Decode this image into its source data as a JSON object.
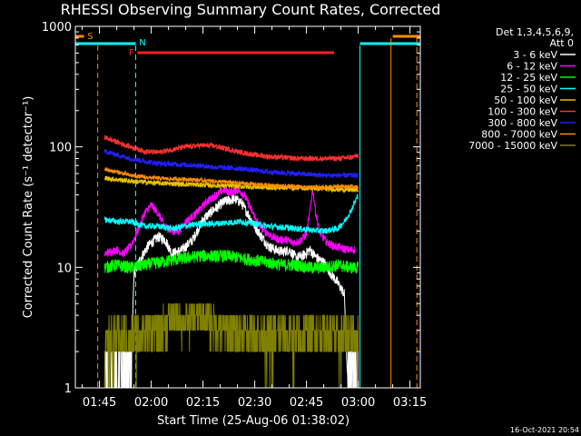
{
  "chart_data": {
    "type": "line",
    "title": "RHESSI Observing Summary Count Rates, Corrected",
    "xlabel": "Start Time (25-Aug-06 01:38:02)",
    "ylabel": "Corrected Count Rate (s⁻¹ detector⁻¹)",
    "x_unit": "minutes since 01:38:02",
    "xlim": [
      0,
      100
    ],
    "ylim": [
      1,
      1000
    ],
    "yscale": "log",
    "x_ticks": [
      {
        "label": "01:45",
        "minute": 7
      },
      {
        "label": "02:00",
        "minute": 22
      },
      {
        "label": "02:15",
        "minute": 37
      },
      {
        "label": "02:30",
        "minute": 52
      },
      {
        "label": "02:45",
        "minute": 67
      },
      {
        "label": "03:00",
        "minute": 82
      },
      {
        "label": "03:15",
        "minute": 97
      }
    ],
    "y_ticks": [
      {
        "label": "1",
        "value": 1
      },
      {
        "label": "10",
        "value": 10
      },
      {
        "label": "100",
        "value": 100
      },
      {
        "label": "1000",
        "value": 1000
      }
    ],
    "legend_title": [
      "Det 1,3,4,5,6,9,",
      "Att 0"
    ],
    "legend_position": "right",
    "series": [
      {
        "name": "3 - 6 keV",
        "color": "#ffffff",
        "points": [
          [
            8.5,
            1
          ],
          [
            14,
            1.2
          ],
          [
            16.3,
            2
          ],
          [
            17,
            9
          ],
          [
            19,
            12
          ],
          [
            21,
            15
          ],
          [
            24,
            18
          ],
          [
            26,
            17
          ],
          [
            28,
            13
          ],
          [
            31,
            14
          ],
          [
            34,
            17
          ],
          [
            37,
            25
          ],
          [
            40,
            30
          ],
          [
            43,
            35
          ],
          [
            46,
            37
          ],
          [
            48,
            35
          ],
          [
            50,
            28
          ],
          [
            52,
            22
          ],
          [
            54,
            18
          ],
          [
            56,
            15
          ],
          [
            58,
            14
          ],
          [
            60,
            13.5
          ],
          [
            62,
            14
          ],
          [
            64,
            12
          ],
          [
            66,
            12.5
          ],
          [
            68,
            14
          ],
          [
            70,
            12
          ],
          [
            72,
            11
          ],
          [
            74,
            9
          ],
          [
            76,
            7.5
          ],
          [
            78,
            6
          ],
          [
            79,
            1
          ],
          [
            80,
            1.5
          ],
          [
            82,
            1
          ]
        ]
      },
      {
        "name": "6 - 12 keV",
        "color": "#ff00ff",
        "points": [
          [
            8.5,
            13
          ],
          [
            12,
            14
          ],
          [
            14,
            13
          ],
          [
            16,
            15
          ],
          [
            18,
            20
          ],
          [
            20,
            28
          ],
          [
            22,
            33
          ],
          [
            24,
            28
          ],
          [
            26,
            22
          ],
          [
            28,
            20
          ],
          [
            30,
            20
          ],
          [
            32,
            24
          ],
          [
            35,
            28
          ],
          [
            38,
            35
          ],
          [
            41,
            40
          ],
          [
            43,
            44
          ],
          [
            45,
            42
          ],
          [
            47,
            44
          ],
          [
            49,
            40
          ],
          [
            51,
            30
          ],
          [
            53,
            23
          ],
          [
            55,
            20
          ],
          [
            57,
            18
          ],
          [
            59,
            17
          ],
          [
            61,
            17
          ],
          [
            63,
            16
          ],
          [
            65,
            16.5
          ],
          [
            67,
            19
          ],
          [
            68,
            29
          ],
          [
            68.8,
            45
          ],
          [
            69.6,
            29
          ],
          [
            71,
            19
          ],
          [
            73,
            16
          ],
          [
            75,
            15
          ],
          [
            77,
            14.5
          ],
          [
            79,
            14
          ],
          [
            81,
            14
          ]
        ]
      },
      {
        "name": "12 - 25 keV",
        "color": "#00ff00",
        "points": [
          [
            8.5,
            10
          ],
          [
            12,
            10.5
          ],
          [
            16,
            10
          ],
          [
            20,
            10.5
          ],
          [
            24,
            11
          ],
          [
            28,
            11.5
          ],
          [
            32,
            12
          ],
          [
            36,
            12.5
          ],
          [
            40,
            12.5
          ],
          [
            44,
            12.5
          ],
          [
            48,
            12
          ],
          [
            52,
            11.5
          ],
          [
            56,
            11
          ],
          [
            60,
            10.5
          ],
          [
            64,
            10.5
          ],
          [
            68,
            10
          ],
          [
            72,
            10
          ],
          [
            76,
            10.5
          ],
          [
            80,
            10
          ],
          [
            82,
            10
          ]
        ]
      },
      {
        "name": "25 - 50 keV",
        "color": "#00ffff",
        "points": [
          [
            8.5,
            25
          ],
          [
            12,
            24
          ],
          [
            16,
            24
          ],
          [
            20,
            22
          ],
          [
            24,
            22
          ],
          [
            28,
            21
          ],
          [
            32,
            22
          ],
          [
            36,
            23
          ],
          [
            40,
            23
          ],
          [
            44,
            23.5
          ],
          [
            48,
            24
          ],
          [
            52,
            23
          ],
          [
            56,
            22
          ],
          [
            60,
            21.5
          ],
          [
            64,
            21
          ],
          [
            68,
            20.5
          ],
          [
            72,
            20
          ],
          [
            76,
            21
          ],
          [
            78,
            24
          ],
          [
            80,
            30
          ],
          [
            82,
            40
          ]
        ]
      },
      {
        "name": "50 - 100 keV",
        "color": "#e8c000",
        "points": [
          [
            8.5,
            55
          ],
          [
            16,
            52
          ],
          [
            24,
            50
          ],
          [
            32,
            49
          ],
          [
            40,
            48
          ],
          [
            48,
            47
          ],
          [
            56,
            46
          ],
          [
            64,
            46
          ],
          [
            72,
            45
          ],
          [
            80,
            44
          ],
          [
            82,
            44
          ]
        ]
      },
      {
        "name": "100 - 300 keV",
        "color": "#ff3030",
        "points": [
          [
            8.5,
            120
          ],
          [
            12,
            110
          ],
          [
            16,
            100
          ],
          [
            20,
            92
          ],
          [
            24,
            90
          ],
          [
            28,
            95
          ],
          [
            32,
            100
          ],
          [
            36,
            103
          ],
          [
            40,
            102
          ],
          [
            44,
            96
          ],
          [
            48,
            90
          ],
          [
            52,
            86
          ],
          [
            56,
            83
          ],
          [
            60,
            82
          ],
          [
            64,
            80
          ],
          [
            68,
            80
          ],
          [
            72,
            80
          ],
          [
            76,
            80
          ],
          [
            80,
            82
          ],
          [
            82,
            85
          ]
        ]
      },
      {
        "name": "300 - 800 keV",
        "color": "#2020ff",
        "points": [
          [
            8.5,
            92
          ],
          [
            12,
            86
          ],
          [
            16,
            80
          ],
          [
            20,
            76
          ],
          [
            24,
            73
          ],
          [
            28,
            72
          ],
          [
            32,
            71
          ],
          [
            36,
            70
          ],
          [
            40,
            68
          ],
          [
            44,
            67
          ],
          [
            48,
            66
          ],
          [
            52,
            64
          ],
          [
            56,
            62
          ],
          [
            60,
            61
          ],
          [
            64,
            60
          ],
          [
            68,
            59
          ],
          [
            72,
            58
          ],
          [
            76,
            58
          ],
          [
            80,
            58
          ],
          [
            82,
            58
          ]
        ]
      },
      {
        "name": "800 - 7000 keV",
        "color": "#ff8c00",
        "points": [
          [
            8.5,
            65
          ],
          [
            12,
            62
          ],
          [
            16,
            58
          ],
          [
            20,
            56
          ],
          [
            24,
            55
          ],
          [
            28,
            54
          ],
          [
            32,
            54
          ],
          [
            36,
            53
          ],
          [
            40,
            52
          ],
          [
            44,
            51
          ],
          [
            48,
            50
          ],
          [
            52,
            49
          ],
          [
            56,
            48
          ],
          [
            60,
            47
          ],
          [
            64,
            47
          ],
          [
            68,
            46
          ],
          [
            72,
            46
          ],
          [
            76,
            47
          ],
          [
            80,
            47
          ],
          [
            82,
            47
          ]
        ]
      },
      {
        "name": "7000 - 15000 keV",
        "color": "#808000",
        "points": [
          [
            8.5,
            2
          ],
          [
            12,
            3
          ],
          [
            16,
            2.5
          ],
          [
            20,
            3
          ],
          [
            24,
            3
          ],
          [
            28,
            4
          ],
          [
            32,
            3.5
          ],
          [
            36,
            4
          ],
          [
            40,
            3.5
          ],
          [
            44,
            3
          ],
          [
            48,
            3
          ],
          [
            52,
            3
          ],
          [
            56,
            2.5
          ],
          [
            60,
            3
          ],
          [
            64,
            2.5
          ],
          [
            68,
            3
          ],
          [
            72,
            3
          ],
          [
            76,
            2.5
          ],
          [
            80,
            3
          ],
          [
            82,
            2.5
          ]
        ]
      }
    ],
    "annotations": [
      {
        "label": "S",
        "color": "#ff8c00"
      },
      {
        "label": "N",
        "color": "#00ffff"
      },
      {
        "label": "F",
        "color": "#ff2020"
      }
    ],
    "timestamp": "16-Oct-2021 20:54"
  }
}
